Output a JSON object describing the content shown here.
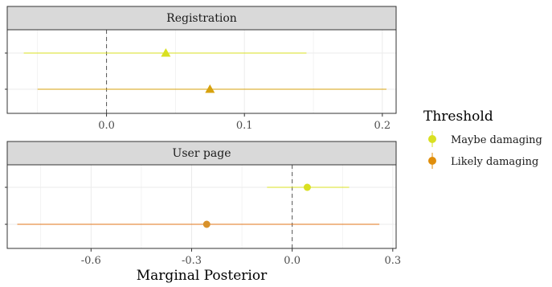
{
  "chart_data": [
    {
      "type": "scatter",
      "panel_title": "Registration",
      "marker": "triangle",
      "xlabel": "",
      "xlim": [
        -0.072,
        0.21
      ],
      "xticks": [
        0.0,
        0.1,
        0.2
      ],
      "xtick_labels": [
        "0.0",
        "0.1",
        "0.2"
      ],
      "reference_line": 0,
      "grid": true,
      "series": [
        {
          "name": "Maybe damaging",
          "estimate": 0.043,
          "lower": -0.06,
          "upper": 0.145
        },
        {
          "name": "Likely damaging",
          "estimate": 0.075,
          "lower": -0.05,
          "upper": 0.203
        }
      ]
    },
    {
      "type": "scatter",
      "panel_title": "User page",
      "marker": "circle",
      "xlabel": "Marginal Posterior",
      "xlim": [
        -0.85,
        0.31
      ],
      "xticks": [
        -0.6,
        -0.3,
        0.0,
        0.3
      ],
      "xtick_labels": [
        "-0.6",
        "-0.3",
        "0.0",
        "0.3"
      ],
      "reference_line": 0,
      "grid": true,
      "series": [
        {
          "name": "Maybe damaging",
          "estimate": 0.045,
          "lower": -0.075,
          "upper": 0.17
        },
        {
          "name": "Likely damaging",
          "estimate": -0.255,
          "lower": -0.82,
          "upper": 0.26
        }
      ]
    }
  ],
  "legend": {
    "title": "Threshold",
    "placement": "right",
    "items": [
      {
        "label": "Maybe damaging",
        "color": "#d9e021"
      },
      {
        "label": "Likely damaging",
        "color": "#e08e0b"
      }
    ]
  },
  "colors": {
    "maybe": "#d9e021",
    "likely_registration": "#d7a20e",
    "likely_userpage": "#e0741a",
    "likely_marker_userpage": "#d8912a",
    "strip_bg": "#d9d9d9",
    "grid": "#ebebeb",
    "border": "#333333",
    "refline": "#555555"
  }
}
